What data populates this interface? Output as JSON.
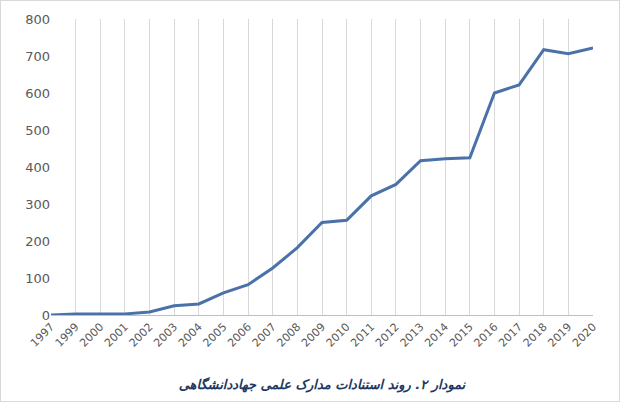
{
  "chart_data": {
    "type": "line",
    "title": "نمودار ۲. روند استنادات مدارک علمی جهاددانشگاهی",
    "categories": [
      "1997",
      "1999",
      "2000",
      "2001",
      "2002",
      "2003",
      "2004",
      "2005",
      "2006",
      "2007",
      "2008",
      "2009",
      "2010",
      "2011",
      "2012",
      "2013",
      "2014",
      "2015",
      "2016",
      "2017",
      "2018",
      "2019",
      "2020"
    ],
    "values": [
      0,
      3,
      3,
      3,
      8,
      25,
      30,
      60,
      82,
      127,
      182,
      250,
      256,
      322,
      353,
      417,
      422,
      425,
      600,
      622,
      717,
      706,
      722
    ],
    "color": "#4a72a8",
    "ylim": [
      0,
      800
    ],
    "yticks": [
      0,
      100,
      200,
      300,
      400,
      500,
      600,
      700,
      800
    ],
    "grid": true
  }
}
